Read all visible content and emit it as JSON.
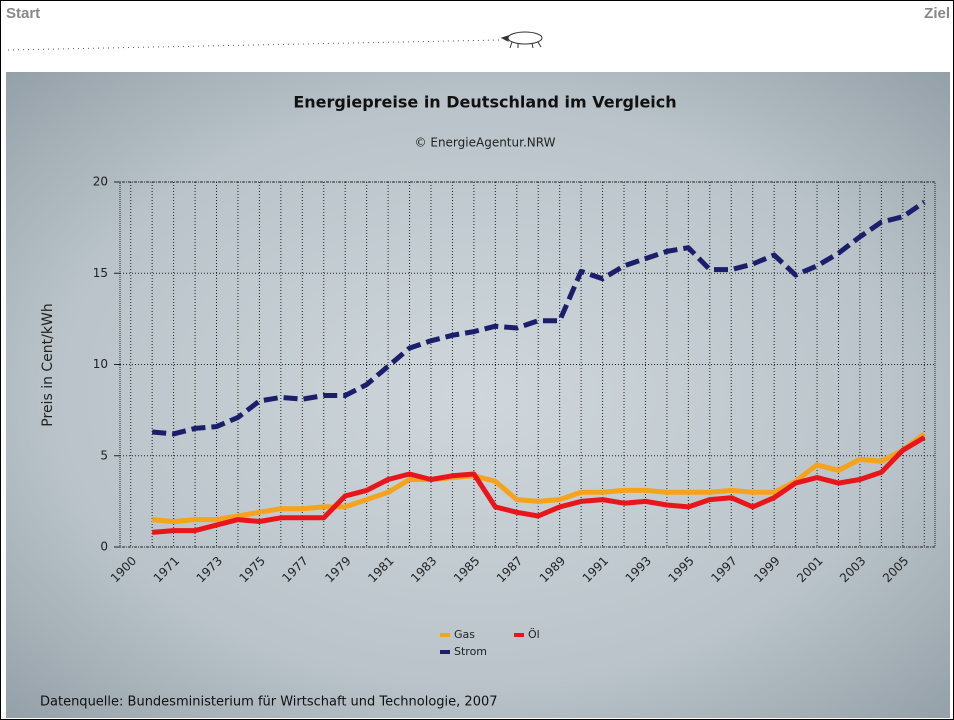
{
  "header": {
    "start": "Start",
    "end": "Ziel"
  },
  "chart_data": {
    "type": "line",
    "title": "Energiepreise in Deutschland im Vergleich",
    "subtitle": "© EnergieAgentur.NRW",
    "y_label": "Preis in Cent/kWh",
    "source": "Datenquelle: Bundesministerium für Wirtschaft und Technologie, 2007",
    "categories": [
      "1900",
      null,
      "1971",
      null,
      "1973",
      null,
      "1975",
      null,
      "1977",
      null,
      "1979",
      null,
      "1981",
      null,
      "1983",
      null,
      "1985",
      null,
      "1987",
      null,
      "1989",
      null,
      "1991",
      null,
      "1993",
      null,
      "1995",
      null,
      "1997",
      null,
      "1999",
      null,
      "2001",
      null,
      "2003",
      null,
      "2005",
      null
    ],
    "series": [
      {
        "name": "Gas",
        "color": "#f5a31c",
        "dashed": false,
        "values": [
          null,
          1.5,
          1.4,
          1.5,
          1.5,
          1.7,
          1.9,
          2.1,
          2.1,
          2.2,
          2.2,
          2.6,
          3.0,
          3.7,
          3.7,
          3.8,
          3.9,
          3.6,
          2.6,
          2.5,
          2.6,
          3.0,
          3.0,
          3.1,
          3.1,
          3.0,
          3.0,
          3.0,
          3.1,
          3.0,
          3.0,
          3.6,
          4.5,
          4.2,
          4.8,
          4.7,
          5.3,
          6.2
        ]
      },
      {
        "name": "Öl",
        "color": "#e8161b",
        "dashed": false,
        "values": [
          null,
          0.8,
          0.9,
          0.9,
          1.2,
          1.5,
          1.4,
          1.6,
          1.6,
          1.6,
          2.8,
          3.1,
          3.7,
          4.0,
          3.7,
          3.9,
          4.0,
          2.2,
          1.9,
          1.7,
          2.2,
          2.5,
          2.6,
          2.4,
          2.5,
          2.3,
          2.2,
          2.6,
          2.7,
          2.2,
          2.7,
          3.5,
          3.8,
          3.5,
          3.7,
          4.1,
          5.3,
          6.0
        ]
      },
      {
        "name": "Strom",
        "color": "#1b1f6b",
        "dashed": true,
        "values": [
          null,
          6.3,
          6.2,
          6.5,
          6.6,
          7.1,
          8.0,
          8.2,
          8.1,
          8.3,
          8.3,
          8.9,
          9.9,
          10.9,
          11.3,
          11.6,
          11.8,
          12.1,
          12.0,
          12.4,
          12.4,
          15.1,
          14.7,
          15.4,
          15.8,
          16.2,
          16.4,
          15.2,
          15.2,
          15.5,
          16.0,
          14.9,
          15.4,
          16.1,
          17.0,
          17.8,
          18.1,
          18.9
        ]
      }
    ],
    "ylim": [
      0,
      20
    ],
    "yticks": [
      0,
      5,
      10,
      15,
      20
    ],
    "grid": true
  }
}
